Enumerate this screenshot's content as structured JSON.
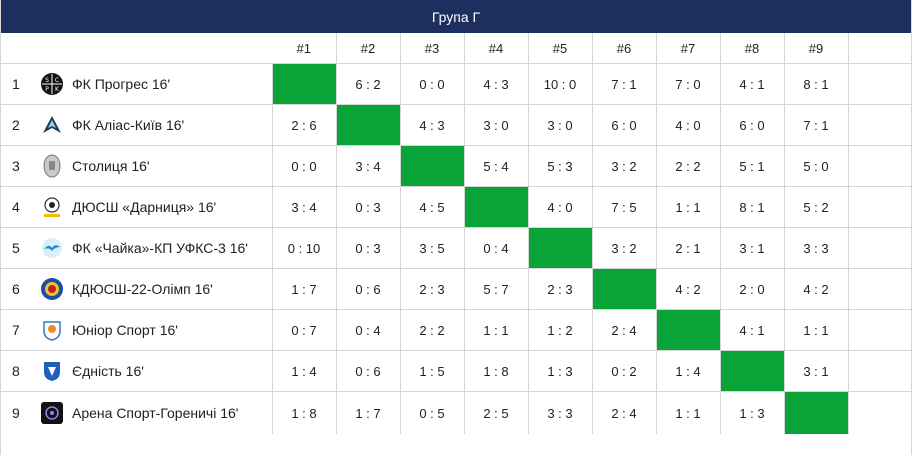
{
  "header": {
    "title": "Група Г"
  },
  "columns": [
    "#1",
    "#2",
    "#3",
    "#4",
    "#5",
    "#6",
    "#7",
    "#8",
    "#9"
  ],
  "colors": {
    "header_bg": "#1d2f5e",
    "diagonal": "#0aa338",
    "border": "#d6d6d6"
  },
  "rows": [
    {
      "rank": "1",
      "team": "ФК Прогрес 16'",
      "logo": "progres-logo-icon",
      "scores": [
        "",
        "6 : 2",
        "0 : 0",
        "4 : 3",
        "10 : 0",
        "7 : 1",
        "7 : 0",
        "4 : 1",
        "8 : 1"
      ]
    },
    {
      "rank": "2",
      "team": "ФК Аліас-Київ 16'",
      "logo": "alias-logo-icon",
      "scores": [
        "2 : 6",
        "",
        "4 : 3",
        "3 : 0",
        "3 : 0",
        "6 : 0",
        "4 : 0",
        "6 : 0",
        "7 : 1"
      ]
    },
    {
      "rank": "3",
      "team": "Столиця 16'",
      "logo": "stolytsia-logo-icon",
      "scores": [
        "0 : 0",
        "3 : 4",
        "",
        "5 : 4",
        "5 : 3",
        "3 : 2",
        "2 : 2",
        "5 : 1",
        "5 : 0"
      ]
    },
    {
      "rank": "4",
      "team": "ДЮСШ «Дарниця» 16'",
      "logo": "darnytsia-logo-icon",
      "scores": [
        "3 : 4",
        "0 : 3",
        "4 : 5",
        "",
        "4 : 0",
        "7 : 5",
        "1 : 1",
        "8 : 1",
        "5 : 2"
      ]
    },
    {
      "rank": "5",
      "team": "ФК «Чайка»-КП УФКС-3 16'",
      "logo": "chaika-logo-icon",
      "scores": [
        "0 : 10",
        "0 : 3",
        "3 : 5",
        "0 : 4",
        "",
        "3 : 2",
        "2 : 1",
        "3 : 1",
        "3 : 3"
      ]
    },
    {
      "rank": "6",
      "team": "КДЮСШ-22-Олімп 16'",
      "logo": "olimp-logo-icon",
      "scores": [
        "1 : 7",
        "0 : 6",
        "2 : 3",
        "5 : 7",
        "2 : 3",
        "",
        "4 : 2",
        "2 : 0",
        "4 : 2"
      ]
    },
    {
      "rank": "7",
      "team": "Юніор Спорт 16'",
      "logo": "junior-sport-logo-icon",
      "scores": [
        "0 : 7",
        "0 : 4",
        "2 : 2",
        "1 : 1",
        "1 : 2",
        "2 : 4",
        "",
        "4 : 1",
        "1 : 1"
      ]
    },
    {
      "rank": "8",
      "team": "Єдність 16'",
      "logo": "yednist-logo-icon",
      "scores": [
        "1 : 4",
        "0 : 6",
        "1 : 5",
        "1 : 8",
        "1 : 3",
        "0 : 2",
        "1 : 4",
        "",
        "3 : 1"
      ]
    },
    {
      "rank": "9",
      "team": "Арена Спорт-Гореничі 16'",
      "logo": "arena-sport-logo-icon",
      "scores": [
        "1 : 8",
        "1 : 7",
        "0 : 5",
        "2 : 5",
        "3 : 3",
        "2 : 4",
        "1 : 1",
        "1 : 3",
        ""
      ]
    }
  ]
}
